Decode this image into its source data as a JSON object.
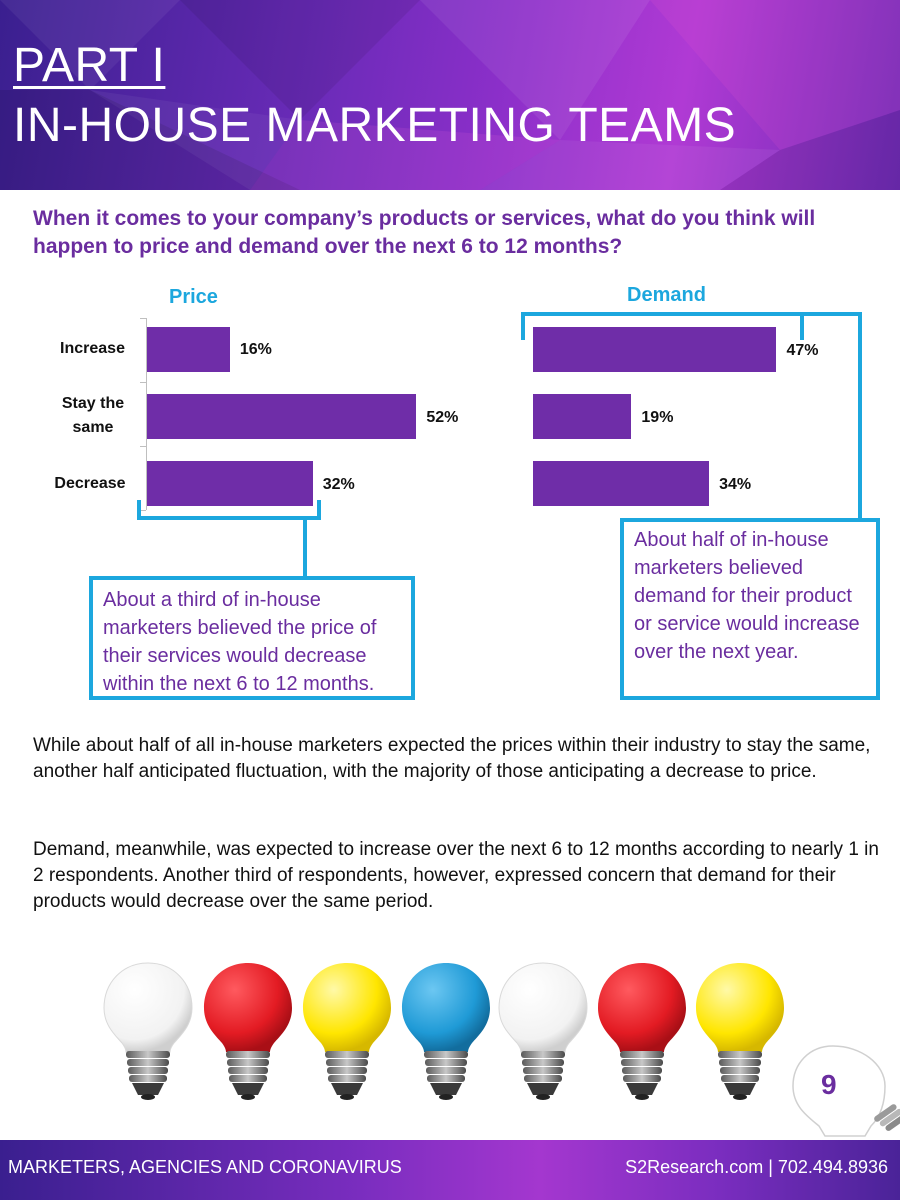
{
  "header": {
    "part": "PART I",
    "title": "IN-HOUSE MARKETING TEAMS"
  },
  "question": "When it comes to your company’s products or services, what do you think will happen to price and demand over the next 6 to 12 months?",
  "chart_data": [
    {
      "type": "bar",
      "orientation": "horizontal",
      "title": "Price",
      "categories": [
        "Increase",
        "Stay the same",
        "Decrease"
      ],
      "values": [
        16,
        52,
        32
      ],
      "value_labels": [
        "16%",
        "52%",
        "32%"
      ],
      "unit": "%",
      "xlim": [
        0,
        60
      ]
    },
    {
      "type": "bar",
      "orientation": "horizontal",
      "title": "Demand",
      "categories": [
        "Increase",
        "Stay the same",
        "Decrease"
      ],
      "values": [
        47,
        19,
        34
      ],
      "value_labels": [
        "47%",
        "19%",
        "34%"
      ],
      "unit": "%",
      "xlim": [
        0,
        60
      ]
    }
  ],
  "callouts": {
    "price": "About a third of in-house marketers believed the price of their services would decrease within the next 6 to 12 months.",
    "demand": "About half of in-house marketers believed demand for their product or service would increase over the next year."
  },
  "paragraphs": [
    "While about half of all in-house marketers expected the prices within their industry to stay the same, another half anticipated fluctuation, with the majority of those anticipating a decrease to price.",
    "Demand, meanwhile, was expected to increase over the next 6 to 12 months according to nearly 1 in 2 respondents. Another third of respondents, however, expressed concern that demand for their products would decrease over the same period."
  ],
  "bulbs": [
    "white",
    "red",
    "yellow",
    "blue",
    "white",
    "red",
    "yellow"
  ],
  "colors": {
    "bar": "#6f2da8",
    "accent_blue": "#1ca7de",
    "accent_purple": "#6a2d9f",
    "bulb_white": "#f7f7f7",
    "bulb_red": "#e31b23",
    "bulb_yellow": "#ffe600",
    "bulb_blue": "#1f9ad6"
  },
  "page_number": "9",
  "footer": {
    "left": "MARKETERS, AGENCIES AND CORONAVIRUS",
    "right": "S2Research.com | 702.494.8936"
  }
}
